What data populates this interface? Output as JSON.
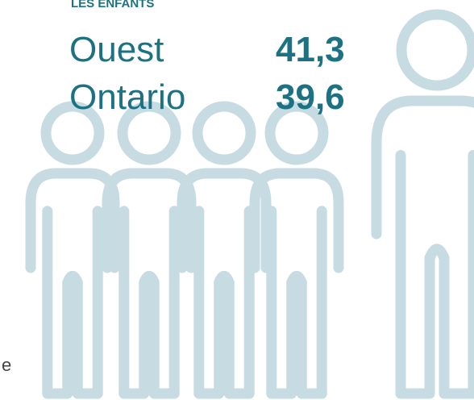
{
  "heading": "LES ENFANTS",
  "rows": [
    {
      "label": "Ouest",
      "value": "41,3"
    },
    {
      "label": "Ontario",
      "value": "39,6"
    }
  ],
  "side_text": "e"
}
